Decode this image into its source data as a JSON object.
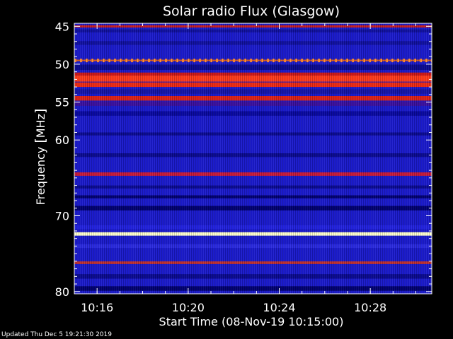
{
  "chart_data": {
    "type": "heatmap",
    "title": "Solar radio Flux (Glasgow)",
    "ylabel_prefix": "Frequency ",
    "ylabel_unit": "MHz",
    "xlabel": "Start Time (08-Nov-19 10:15:00)",
    "x_start_minutes": 0,
    "x_end_minutes": 15.7,
    "x_ticks": [
      {
        "label": "10:16",
        "minutes": 1
      },
      {
        "label": "10:20",
        "minutes": 5
      },
      {
        "label": "10:24",
        "minutes": 9
      },
      {
        "label": "10:28",
        "minutes": 13
      }
    ],
    "y_range": [
      44.6,
      80.3
    ],
    "y_ticks": [
      45,
      50,
      55,
      60,
      70,
      80
    ],
    "y_minor_ticks": [
      46,
      47,
      48,
      49,
      51,
      52,
      53,
      54,
      56,
      57,
      58,
      59,
      61,
      62,
      63,
      64,
      65,
      66,
      67,
      68,
      69,
      71,
      72,
      73,
      74,
      75,
      76,
      77,
      78,
      79
    ],
    "background_color": "#1a1acc",
    "bands": [
      {
        "freq": 45.0,
        "width": 0.3,
        "color": "#cc2020"
      },
      {
        "freq": 45.6,
        "width": 0.4,
        "color": "#1010a0"
      },
      {
        "freq": 47.2,
        "width": 0.5,
        "color": "#1010a0"
      },
      {
        "freq": 49.5,
        "width": 0.2,
        "color": "#e06020"
      },
      {
        "freq": 50.4,
        "width": 0.7,
        "color": "#0a0a90"
      },
      {
        "freq": 51.3,
        "width": 0.4,
        "color": "#cc1818"
      },
      {
        "freq": 51.9,
        "width": 0.8,
        "color": "#ff3b1a"
      },
      {
        "freq": 52.7,
        "width": 0.6,
        "color": "#ee2a14"
      },
      {
        "freq": 53.6,
        "width": 0.6,
        "color": "#1515a8"
      },
      {
        "freq": 54.5,
        "width": 0.6,
        "color": "#dd2216"
      },
      {
        "freq": 55.2,
        "width": 0.6,
        "color": "#3a10a0"
      },
      {
        "freq": 56.5,
        "width": 0.6,
        "color": "#0808a0"
      },
      {
        "freq": 59.2,
        "width": 0.4,
        "color": "#0a0a90"
      },
      {
        "freq": 62.0,
        "width": 0.5,
        "color": "#0a0a90"
      },
      {
        "freq": 64.5,
        "width": 0.45,
        "color": "#c81a3a"
      },
      {
        "freq": 66.2,
        "width": 0.4,
        "color": "#0a0a90"
      },
      {
        "freq": 67.5,
        "width": 0.4,
        "color": "#000070"
      },
      {
        "freq": 69.0,
        "width": 0.6,
        "color": "#000070"
      },
      {
        "freq": 71.5,
        "width": 0.5,
        "color": "#2222e0"
      },
      {
        "freq": 72.4,
        "width": 0.45,
        "color": "#ffffcc"
      },
      {
        "freq": 74.0,
        "width": 0.5,
        "color": "#2a2ae0"
      },
      {
        "freq": 76.2,
        "width": 0.35,
        "color": "#c03030"
      },
      {
        "freq": 78.0,
        "width": 0.6,
        "color": "#0a0a90"
      },
      {
        "freq": 79.6,
        "width": 0.6,
        "color": "#000070"
      }
    ],
    "dashed_line": {
      "freq": 49.5,
      "color": "#ff8a30"
    },
    "grid": false
  },
  "footer": {
    "updated": "Updated Thu Dec  5 19:21:30 2019"
  }
}
